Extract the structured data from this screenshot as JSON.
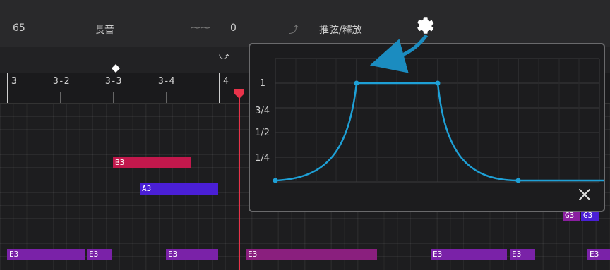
{
  "topbar": {
    "value_left": "65",
    "sustain_label": "長音",
    "vibrato_value": "0",
    "bend_label": "推弦/釋放"
  },
  "ruler": {
    "labels": [
      "3",
      "3-2",
      "3-3",
      "3-4",
      "4"
    ]
  },
  "notes": [
    {
      "label": "B3",
      "color": "#c2184c"
    },
    {
      "label": "A3",
      "color": "#4a1fd6"
    },
    {
      "label": "G3",
      "color": "#8a1fa0"
    },
    {
      "label": "G3",
      "color": "#4a1fd6"
    },
    {
      "label": "E3",
      "color": "#7a22a8"
    }
  ],
  "popup": {
    "y_ticks": [
      "1",
      "3/4",
      "1/2",
      "1/4"
    ]
  },
  "colors": {
    "accent": "#1ea0d6",
    "playhead": "#e8334a",
    "curve": "#1ea0d6"
  },
  "icons": [
    "gear-icon",
    "close-icon",
    "arrow-icon",
    "playhead-marker-icon"
  ]
}
